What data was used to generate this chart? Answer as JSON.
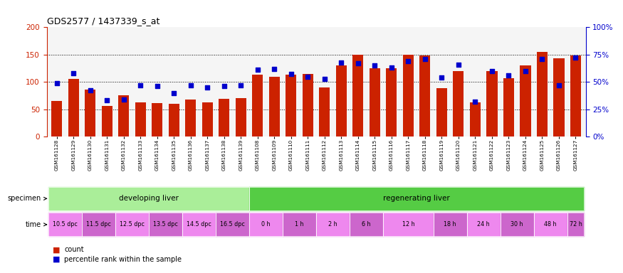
{
  "title": "GDS2577 / 1437339_s_at",
  "samples": [
    "GSM161128",
    "GSM161129",
    "GSM161130",
    "GSM161131",
    "GSM161132",
    "GSM161133",
    "GSM161134",
    "GSM161135",
    "GSM161136",
    "GSM161137",
    "GSM161138",
    "GSM161139",
    "GSM161108",
    "GSM161109",
    "GSM161110",
    "GSM161111",
    "GSM161112",
    "GSM161113",
    "GSM161114",
    "GSM161115",
    "GSM161116",
    "GSM161117",
    "GSM161118",
    "GSM161119",
    "GSM161120",
    "GSM161121",
    "GSM161122",
    "GSM161123",
    "GSM161124",
    "GSM161125",
    "GSM161126",
    "GSM161127"
  ],
  "bar_values": [
    65,
    105,
    86,
    56,
    75,
    63,
    61,
    60,
    68,
    63,
    69,
    70,
    113,
    110,
    113,
    114,
    90,
    130,
    150,
    125,
    125,
    150,
    148,
    89,
    120,
    63,
    120,
    107,
    130,
    155,
    143,
    148
  ],
  "dot_values": [
    49,
    58,
    42,
    33,
    34,
    47,
    46,
    40,
    47,
    45,
    46,
    47,
    61,
    62,
    57,
    55,
    53,
    68,
    67,
    65,
    63,
    69,
    71,
    54,
    66,
    32,
    60,
    56,
    60,
    71,
    47,
    72
  ],
  "bar_color": "#cc2200",
  "dot_color": "#0000cc",
  "ylim_left": [
    0,
    200
  ],
  "ylim_right": [
    0,
    100
  ],
  "yticks_left": [
    0,
    50,
    100,
    150,
    200
  ],
  "yticks_right": [
    0,
    25,
    50,
    75,
    100
  ],
  "ytick_labels_right": [
    "0%",
    "25%",
    "50%",
    "75%",
    "100%"
  ],
  "dotted_lines": [
    50,
    100,
    150
  ],
  "specimen_groups": [
    {
      "label": "developing liver",
      "start": 0,
      "end": 12,
      "color": "#aaee99"
    },
    {
      "label": "regenerating liver",
      "start": 12,
      "end": 32,
      "color": "#55cc44"
    }
  ],
  "time_groups": [
    {
      "label": "10.5 dpc",
      "start": 0,
      "end": 2,
      "color": "#ee88ee"
    },
    {
      "label": "11.5 dpc",
      "start": 2,
      "end": 4,
      "color": "#cc66cc"
    },
    {
      "label": "12.5 dpc",
      "start": 4,
      "end": 6,
      "color": "#ee88ee"
    },
    {
      "label": "13.5 dpc",
      "start": 6,
      "end": 8,
      "color": "#cc66cc"
    },
    {
      "label": "14.5 dpc",
      "start": 8,
      "end": 10,
      "color": "#ee88ee"
    },
    {
      "label": "16.5 dpc",
      "start": 10,
      "end": 12,
      "color": "#cc66cc"
    },
    {
      "label": "0 h",
      "start": 12,
      "end": 14,
      "color": "#ee88ee"
    },
    {
      "label": "1 h",
      "start": 14,
      "end": 16,
      "color": "#cc66cc"
    },
    {
      "label": "2 h",
      "start": 16,
      "end": 18,
      "color": "#ee88ee"
    },
    {
      "label": "6 h",
      "start": 18,
      "end": 20,
      "color": "#cc66cc"
    },
    {
      "label": "12 h",
      "start": 20,
      "end": 23,
      "color": "#ee88ee"
    },
    {
      "label": "18 h",
      "start": 23,
      "end": 25,
      "color": "#cc66cc"
    },
    {
      "label": "24 h",
      "start": 25,
      "end": 27,
      "color": "#ee88ee"
    },
    {
      "label": "30 h",
      "start": 27,
      "end": 29,
      "color": "#cc66cc"
    },
    {
      "label": "48 h",
      "start": 29,
      "end": 31,
      "color": "#ee88ee"
    },
    {
      "label": "72 h",
      "start": 31,
      "end": 32,
      "color": "#cc66cc"
    }
  ],
  "bg_color": "#ffffff"
}
